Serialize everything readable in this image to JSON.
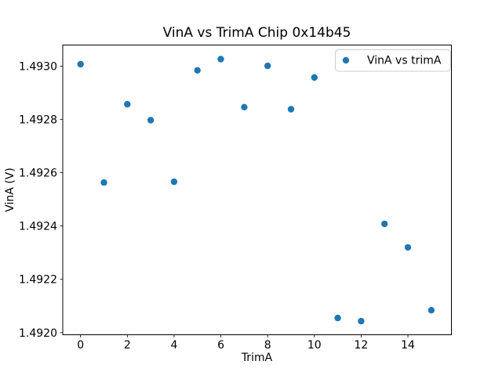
{
  "figure": {
    "background": "#ffffff",
    "text_color": "#000000"
  },
  "chart_data": {
    "type": "scatter",
    "title": "VinA vs TrimA Chip 0x14b45",
    "xlabel": "TrimA",
    "ylabel": "VinA (V)",
    "grid": false,
    "legend": {
      "label": "VinA vs trimA",
      "position": "upper right"
    },
    "marker": {
      "color": "#1f77b4",
      "shape": "circle",
      "radius_px": 4.2
    },
    "axis_color": "#000000",
    "legend_frame_color": "#cccccc",
    "xlim": [
      -0.76,
      15.86
    ],
    "ylim": [
      1.491992,
      1.493079
    ],
    "xticks": {
      "values": [
        0,
        2,
        4,
        6,
        8,
        10,
        12,
        14
      ],
      "labels": [
        "0",
        "2",
        "4",
        "6",
        "8",
        "10",
        "12",
        "14"
      ]
    },
    "yticks": {
      "values": [
        1.492,
        1.4922,
        1.4924,
        1.4926,
        1.4928,
        1.493
      ],
      "labels": [
        "1.4920",
        "1.4922",
        "1.4924",
        "1.4926",
        "1.4928",
        "1.4930"
      ]
    },
    "series": [
      {
        "name": "VinA vs trimA",
        "x": [
          0,
          1,
          2,
          3,
          4,
          5,
          6,
          7,
          8,
          9,
          10,
          11,
          12,
          13,
          14,
          15
        ],
        "y": [
          1.493007,
          1.492563,
          1.492857,
          1.492797,
          1.492566,
          1.492984,
          1.493026,
          1.492846,
          1.493001,
          1.492838,
          1.492957,
          1.492055,
          1.492043,
          1.492408,
          1.49232,
          1.492084
        ]
      }
    ]
  }
}
